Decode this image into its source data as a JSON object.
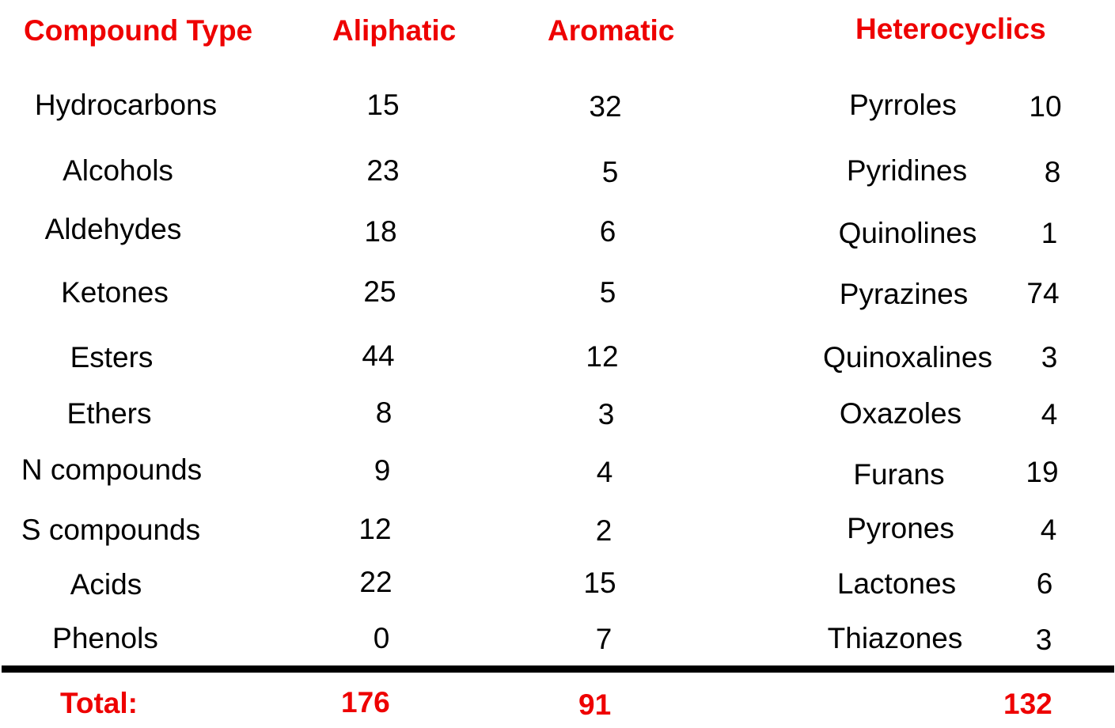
{
  "headers": {
    "compound_type": "Compound Type",
    "aliphatic": "Aliphatic",
    "aromatic": "Aromatic",
    "heterocyclics": "Heterocyclics"
  },
  "rows": [
    {
      "type": "Hydrocarbons",
      "aliphatic": "15",
      "aromatic": "32",
      "hetero_name": "Pyrroles",
      "hetero_count": "10"
    },
    {
      "type": "Alcohols",
      "aliphatic": "23",
      "aromatic": "5",
      "hetero_name": "Pyridines",
      "hetero_count": "8"
    },
    {
      "type": "Aldehydes",
      "aliphatic": "18",
      "aromatic": "6",
      "hetero_name": "Quinolines",
      "hetero_count": "1"
    },
    {
      "type": "Ketones",
      "aliphatic": "25",
      "aromatic": "5",
      "hetero_name": "Pyrazines",
      "hetero_count": "74"
    },
    {
      "type": "Esters",
      "aliphatic": "44",
      "aromatic": "12",
      "hetero_name": "Quinoxalines",
      "hetero_count": "3"
    },
    {
      "type": "Ethers",
      "aliphatic": "8",
      "aromatic": "3",
      "hetero_name": "Oxazoles",
      "hetero_count": "4"
    },
    {
      "type": "N compounds",
      "aliphatic": "9",
      "aromatic": "4",
      "hetero_name": "Furans",
      "hetero_count": "19"
    },
    {
      "type": "S compounds",
      "aliphatic": "12",
      "aromatic": "2",
      "hetero_name": "Pyrones",
      "hetero_count": "4"
    },
    {
      "type": "Acids",
      "aliphatic": "22",
      "aromatic": "15",
      "hetero_name": "Lactones",
      "hetero_count": "6"
    },
    {
      "type": "Phenols",
      "aliphatic": "0",
      "aromatic": "7",
      "hetero_name": "Thiazones",
      "hetero_count": "3"
    }
  ],
  "totals": {
    "label": "Total:",
    "aliphatic": "176",
    "aromatic": "91",
    "heterocyclics": "132"
  },
  "colors": {
    "accent": "#ee0000",
    "text": "#000000",
    "background": "#ffffff"
  }
}
